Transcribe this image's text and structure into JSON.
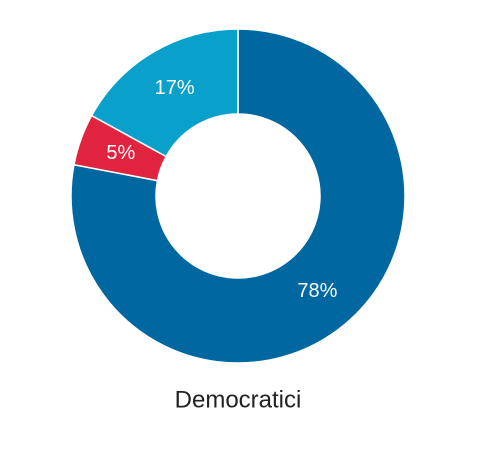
{
  "chart_data": {
    "type": "donut",
    "title": "Democratici",
    "values": [
      78,
      5,
      17
    ],
    "value_labels": [
      "78%",
      "5%",
      "17%"
    ],
    "colors": [
      "#0067a0",
      "#e0243f",
      "#0aa0cc"
    ]
  }
}
